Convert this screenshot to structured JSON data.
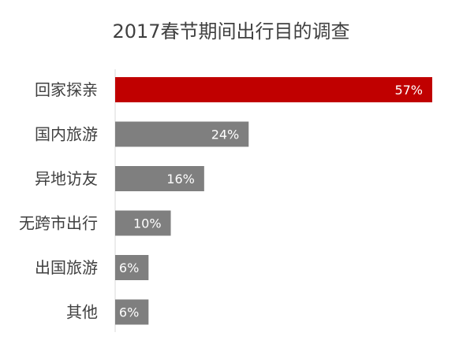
{
  "chart_data": {
    "type": "bar",
    "orientation": "horizontal",
    "title": "2017春节期间出行目的调查",
    "categories": [
      "回家探亲",
      "国内旅游",
      "异地访友",
      "无跨市出行",
      "出国旅游",
      "其他"
    ],
    "values": [
      57,
      24,
      16,
      10,
      6,
      6
    ],
    "labels": [
      "57%",
      "24%",
      "16%",
      "10%",
      "6%",
      "6%"
    ],
    "highlight_index": 0,
    "colors": {
      "highlight": "#c00000",
      "default": "#7f7f7f",
      "axis": "#d9d9d9",
      "text": "#404040",
      "label": "#ffffff"
    },
    "xlim": [
      0,
      57
    ],
    "grid": false,
    "legend": "none"
  }
}
